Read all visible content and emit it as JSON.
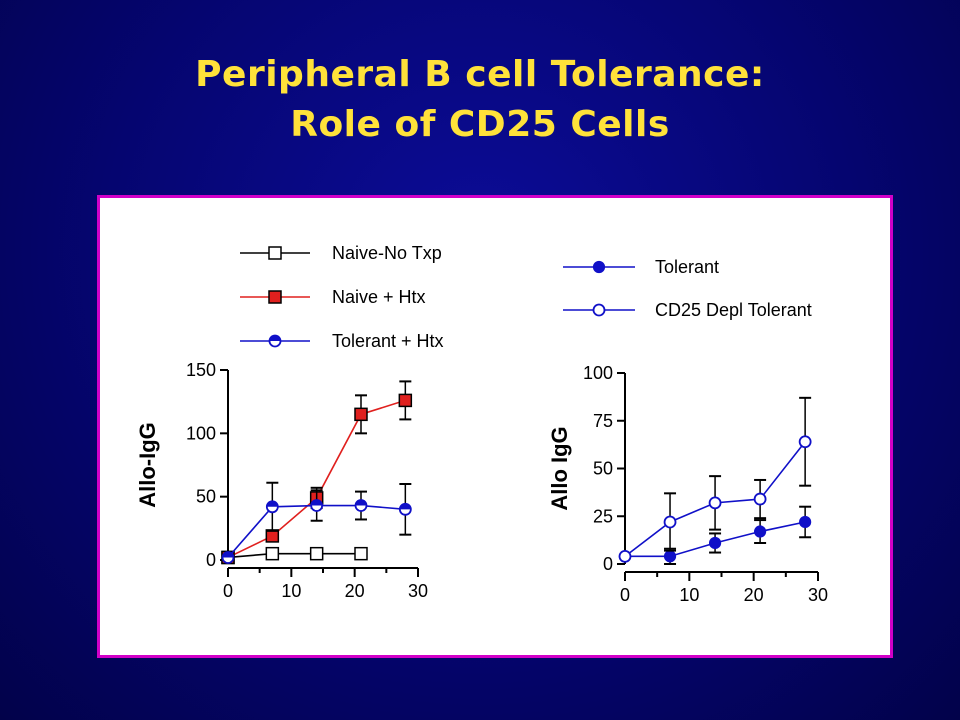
{
  "slide": {
    "title_line1": "Peripheral B cell Tolerance:",
    "title_line2": "Role of CD25 Cells"
  },
  "colors": {
    "background": "#050570",
    "title": "#ffe23a",
    "panel_border": "#d100c8",
    "red": "#e0201e",
    "blue": "#1010c8",
    "black": "#000000"
  },
  "chart_data": [
    {
      "type": "line",
      "ylabel": "Allo-IgG",
      "xlabel": "",
      "xlim": [
        0,
        30
      ],
      "ylim": [
        0,
        150
      ],
      "xticks": [
        0,
        10,
        20,
        30
      ],
      "yticks": [
        0,
        50,
        100,
        150
      ],
      "legend": "top",
      "series": [
        {
          "name": "Naive-No Txp",
          "color": "#000000",
          "marker": "open-square",
          "x": [
            0,
            7,
            14,
            21
          ],
          "y": [
            2,
            5,
            5,
            5
          ],
          "err": [
            0,
            0,
            0,
            0
          ]
        },
        {
          "name": "Naive + Htx",
          "color": "#e0201e",
          "marker": "filled-square",
          "x": [
            0,
            7,
            14,
            21,
            28
          ],
          "y": [
            2,
            19,
            49,
            115,
            126
          ],
          "err": [
            0,
            0,
            8,
            15,
            15
          ]
        },
        {
          "name": "Tolerant + Htx",
          "color": "#1010c8",
          "marker": "half-circle",
          "x": [
            0,
            7,
            14,
            21,
            28
          ],
          "y": [
            2,
            42,
            43,
            43,
            40
          ],
          "err": [
            0,
            19,
            12,
            11,
            20
          ]
        }
      ]
    },
    {
      "type": "line",
      "ylabel": "Allo IgG",
      "xlabel": "",
      "xlim": [
        0,
        30
      ],
      "ylim": [
        0,
        100
      ],
      "xticks": [
        0,
        10,
        20,
        30
      ],
      "yticks": [
        0,
        25,
        50,
        75,
        100
      ],
      "legend": "top-right",
      "series": [
        {
          "name": "Tolerant",
          "color": "#1010c8",
          "marker": "filled-circle",
          "x": [
            0,
            7,
            14,
            21,
            28
          ],
          "y": [
            4,
            4,
            11,
            17,
            22
          ],
          "err": [
            0,
            4,
            5,
            6,
            8
          ]
        },
        {
          "name": "CD25 Depl Tolerant",
          "color": "#1010c8",
          "marker": "open-circle",
          "x": [
            0,
            7,
            14,
            21,
            28
          ],
          "y": [
            4,
            22,
            32,
            34,
            64
          ],
          "err": [
            0,
            15,
            14,
            10,
            23
          ]
        }
      ]
    }
  ]
}
